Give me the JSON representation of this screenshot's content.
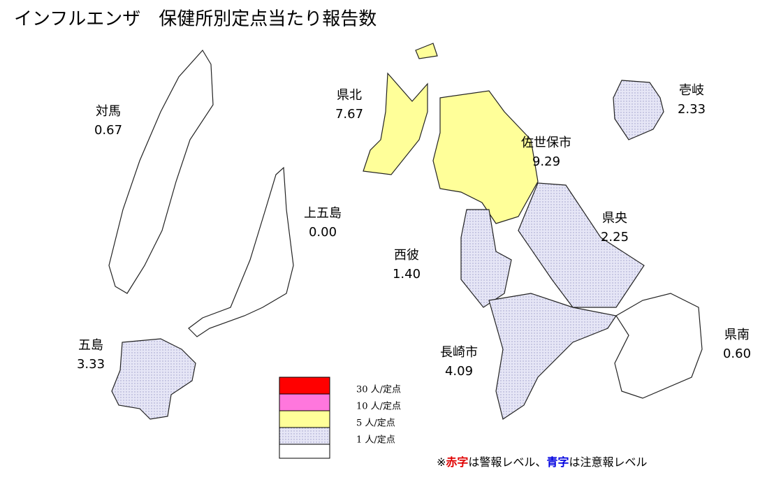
{
  "title": "インフルエンザ　保健所別定点当たり報告数",
  "regions": [
    {
      "name": "対馬",
      "value": "0.67"
    },
    {
      "name": "上五島",
      "value": "0.00"
    },
    {
      "name": "五島",
      "value": "3.33"
    },
    {
      "name": "壱岐",
      "value": "2.33"
    },
    {
      "name": "県北",
      "value": "7.67"
    },
    {
      "name": "佐世保市",
      "value": "9.29"
    },
    {
      "name": "西彼",
      "value": "1.40"
    },
    {
      "name": "長崎市",
      "value": "4.09"
    },
    {
      "name": "県央",
      "value": "2.25"
    },
    {
      "name": "県南",
      "value": "0.60"
    }
  ],
  "legend": [
    "30 人/定点",
    "10 人/定点",
    "5 人/定点",
    "1 人/定点"
  ],
  "note": [
    "※",
    "赤字",
    "は警報レベル、",
    "青字",
    "は注意報レベル"
  ]
}
